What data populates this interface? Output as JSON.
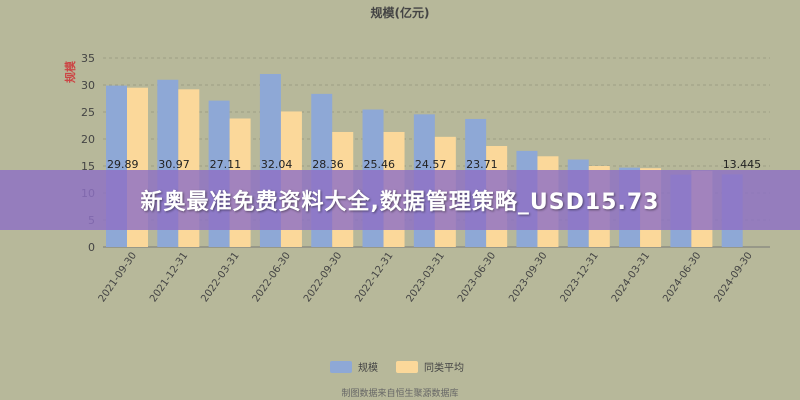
{
  "banner": {
    "text": "新奥最准免费资料大全,数据管理策略_USD15.73"
  },
  "colors": {
    "background": "#b7b89a",
    "series_a": "#8ea8d6",
    "series_b": "#fbd89a",
    "axis_text": "#444444",
    "banner": "#8d70c4"
  },
  "chart_data": {
    "type": "bar",
    "title": "规模(亿元)",
    "ylabel": "规模",
    "ylim": [
      0,
      35
    ],
    "yticks": [
      "0",
      "5",
      "10",
      "15",
      "20",
      "25",
      "30",
      "35"
    ],
    "grid": true,
    "legend_position": "bottom",
    "footer": "制图数据来自恒生聚源数据库",
    "categories": [
      "2021-09-30",
      "2021-12-31",
      "2022-03-31",
      "2022-06-30",
      "2022-09-30",
      "2022-12-31",
      "2023-03-31",
      "2023-06-30",
      "2023-09-30",
      "2023-12-31",
      "2024-03-31",
      "2024-06-30",
      "2024-09-30"
    ],
    "series": [
      {
        "name": "规模",
        "values": [
          29.89,
          30.97,
          27.11,
          32.04,
          28.36,
          25.46,
          24.57,
          23.71,
          17.8,
          16.2,
          14.7,
          13.4,
          13.445
        ]
      },
      {
        "name": "同类平均",
        "values": [
          29.5,
          29.2,
          23.8,
          25.1,
          21.3,
          21.3,
          20.4,
          18.7,
          16.8,
          15.0,
          14.6,
          14.1,
          null
        ]
      }
    ],
    "data_labels": [
      "29.89",
      "30.97",
      "27.11",
      "32.04",
      "28.36",
      "25.46",
      "24.57",
      "23.71",
      "",
      "",
      "",
      "",
      "13.445"
    ]
  }
}
